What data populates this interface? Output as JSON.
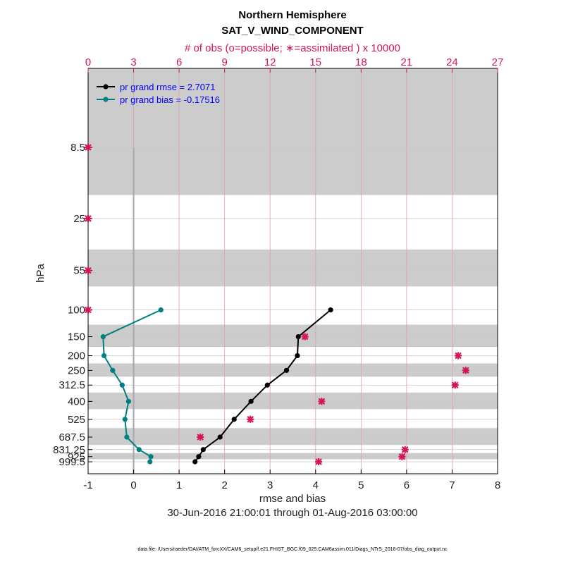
{
  "title_line1": "Northern Hemisphere",
  "title_line2": "SAT_V_WIND_COMPONENT",
  "top_axis_label": "# of obs (o=possible; ∗=assimilated ) x 10000",
  "colors": {
    "rmse": "#000000",
    "bias": "#008080",
    "obs": "#d6145a",
    "legend_text": "#0000ff",
    "band": "#cccccc",
    "zero_line": "#a9a4b0",
    "vgrid": "#d9a3b4",
    "hgrid": "#c8c8c8"
  },
  "chart_data": {
    "type": "line",
    "xlabel": "rmse and bias",
    "ylabel": "hPa",
    "xlim": [
      -1,
      8
    ],
    "xticks": [
      -1,
      0,
      1,
      2,
      3,
      4,
      5,
      6,
      7,
      8
    ],
    "top_xlim": [
      0,
      27
    ],
    "top_xticks": [
      0,
      3,
      6,
      9,
      12,
      15,
      18,
      21,
      24,
      27
    ],
    "levels": [
      8.5,
      25,
      55,
      100,
      150,
      200,
      250,
      312.5,
      400,
      525,
      687.5,
      831.25,
      925,
      999.5
    ],
    "level_labels": [
      "8.5",
      "25",
      "55",
      "100",
      "150",
      "200",
      "250",
      "312.5",
      "400",
      "525",
      "687.5",
      "831.25",
      "925",
      "999.5"
    ],
    "series": [
      {
        "name": "pr grand rmse = 2.7071",
        "levels": [
          100,
          150,
          200,
          250,
          312.5,
          400,
          525,
          687.5,
          831.25,
          925,
          999.5
        ],
        "values": [
          4.33,
          3.62,
          3.6,
          3.36,
          2.94,
          2.58,
          2.21,
          1.9,
          1.53,
          1.43,
          1.35
        ]
      },
      {
        "name": "pr grand bias = -0.17516",
        "levels": [
          100,
          150,
          200,
          250,
          312.5,
          400,
          525,
          687.5,
          831.25,
          925,
          999.5
        ],
        "values": [
          0.6,
          -0.67,
          -0.65,
          -0.46,
          -0.25,
          -0.11,
          -0.19,
          -0.15,
          0.12,
          0.38,
          0.36
        ]
      }
    ],
    "obs_counts_x10000": {
      "levels": [
        8.5,
        25,
        55,
        100,
        150,
        200,
        250,
        312.5,
        400,
        525,
        687.5,
        831.25,
        925,
        999.5
      ],
      "values": [
        0,
        0,
        0,
        0,
        14.3,
        24.4,
        24.9,
        24.2,
        15.4,
        10.7,
        7.4,
        20.9,
        20.7,
        15.2
      ]
    },
    "shaded_bands": [
      [
        0,
        17.5
      ],
      [
        40,
        70
      ],
      [
        125,
        175
      ],
      [
        225,
        275
      ],
      [
        350,
        450
      ],
      [
        600,
        775
      ],
      [
        875,
        962.5
      ]
    ]
  },
  "xlabel_text": "rmse and bias",
  "ylabel_text": "hPa",
  "date_range": "30-Jun-2016 21:00:01 through 01-Aug-2016 03:00:00",
  "footnote": "data file: /Users/raeder/DAI/ATM_forcXX/CAM6_setup/f.e21.FHIST_BGC.f09_025.CAM6assim.011/Diags_NTrS_2016-07/obs_diag_output.nc"
}
